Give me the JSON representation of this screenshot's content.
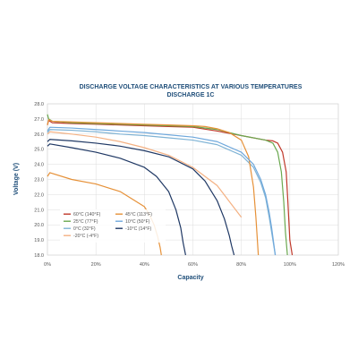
{
  "chart_data": {
    "type": "line",
    "title": "DISCHARGE VOLTAGE CHARACTERISTICS AT VARIOUS TEMPERATURES",
    "subtitle": "DISCHARGE 1C",
    "xlabel": "Capacity",
    "ylabel": "Voltage (V)",
    "xlim": [
      0,
      120
    ],
    "ylim": [
      18.0,
      28.0
    ],
    "xticks": [
      "0%",
      "20%",
      "40%",
      "60%",
      "80%",
      "100%",
      "120%"
    ],
    "yticks": [
      "18.0",
      "19.0",
      "20.0",
      "21.0",
      "22.0",
      "23.0",
      "24.0",
      "25.0",
      "26.0",
      "27.0",
      "28.0"
    ],
    "grid": true,
    "legend_position": "bottom-left",
    "series": [
      {
        "name": "60°C (140°F)",
        "color": "#c0392b",
        "x": [
          0,
          0.5,
          2,
          10,
          20,
          30,
          40,
          50,
          60,
          70,
          80,
          90,
          93,
          95,
          97,
          98.5,
          99.2,
          100,
          101
        ],
        "y": [
          26.6,
          26.9,
          26.75,
          26.7,
          26.65,
          26.6,
          26.55,
          26.5,
          26.45,
          26.2,
          25.9,
          25.6,
          25.55,
          25.4,
          24.8,
          23.5,
          21.5,
          19.0,
          18.0
        ]
      },
      {
        "name": "25°C (77°F)",
        "color": "#6aa84f",
        "x": [
          0,
          0.5,
          2,
          10,
          20,
          30,
          40,
          50,
          60,
          70,
          80,
          90,
          93,
          95,
          96.5,
          97.5,
          98.2,
          99
        ],
        "y": [
          27.3,
          27.0,
          26.85,
          26.75,
          26.7,
          26.65,
          26.6,
          26.55,
          26.5,
          26.3,
          25.9,
          25.6,
          25.4,
          24.8,
          23.5,
          21.5,
          19.5,
          18.0
        ]
      },
      {
        "name": "0°C (32°F)",
        "color": "#7fb3d5",
        "x": [
          0,
          1,
          10,
          20,
          30,
          40,
          50,
          60,
          70,
          80,
          85,
          88,
          90,
          91.5,
          92.5,
          93.5,
          94
        ],
        "y": [
          26.1,
          26.3,
          26.25,
          26.15,
          26.0,
          25.9,
          25.75,
          25.6,
          25.3,
          24.6,
          23.8,
          22.8,
          21.8,
          20.5,
          19.5,
          18.5,
          18.0
        ]
      },
      {
        "name": "-20°C (-4°F)",
        "color": "#f4b183",
        "x": [
          0,
          1,
          10,
          20,
          30,
          40,
          50,
          60,
          70,
          80
        ],
        "y": [
          26.0,
          26.15,
          26.0,
          25.8,
          25.5,
          25.1,
          24.6,
          23.8,
          22.6,
          20.5
        ]
      },
      {
        "name": "45°C (113°F)",
        "color": "#e69138",
        "x": [
          0,
          0.5,
          2,
          10,
          20,
          30,
          40,
          50,
          60,
          65,
          70,
          75,
          80,
          83,
          85,
          86,
          87
        ],
        "y": [
          26.6,
          26.95,
          26.85,
          26.8,
          26.75,
          26.7,
          26.65,
          26.6,
          26.55,
          26.5,
          26.35,
          26.1,
          25.6,
          24.5,
          22.5,
          20.5,
          18.0
        ]
      },
      {
        "name": "10°C (50°F)",
        "color": "#6fa8dc",
        "x": [
          0,
          1,
          10,
          20,
          30,
          40,
          50,
          60,
          70,
          80,
          85,
          88,
          90,
          91.5,
          92.5,
          93.5,
          94
        ],
        "y": [
          26.2,
          26.45,
          26.4,
          26.3,
          26.2,
          26.1,
          25.95,
          25.8,
          25.5,
          24.8,
          24.0,
          23.0,
          22.0,
          20.8,
          19.8,
          18.6,
          18.0
        ]
      },
      {
        "name": "-10°C (14°F)",
        "color": "#1f3864",
        "x": [
          0,
          1,
          10,
          20,
          30,
          40,
          50,
          60,
          65,
          70,
          73,
          75,
          76,
          77
        ],
        "y": [
          25.5,
          25.65,
          25.55,
          25.4,
          25.2,
          24.9,
          24.5,
          23.7,
          22.9,
          21.6,
          20.4,
          19.3,
          18.6,
          18.0
        ]
      },
      {
        "name": "",
        "color": "#1f3864",
        "x": [
          0,
          1,
          10,
          20,
          30,
          40,
          45,
          50,
          53,
          55,
          56,
          57
        ],
        "y": [
          25.2,
          25.35,
          25.1,
          24.8,
          24.4,
          23.8,
          23.2,
          22.2,
          21.0,
          19.8,
          18.8,
          18.0
        ]
      },
      {
        "name": "",
        "color": "#e69138",
        "x": [
          0,
          1,
          10,
          20,
          30,
          40,
          42,
          44,
          45.5,
          46.5,
          47
        ],
        "y": [
          23.2,
          23.45,
          23.0,
          22.7,
          22.2,
          21.2,
          20.7,
          20.0,
          19.2,
          18.5,
          18.0
        ]
      }
    ]
  }
}
